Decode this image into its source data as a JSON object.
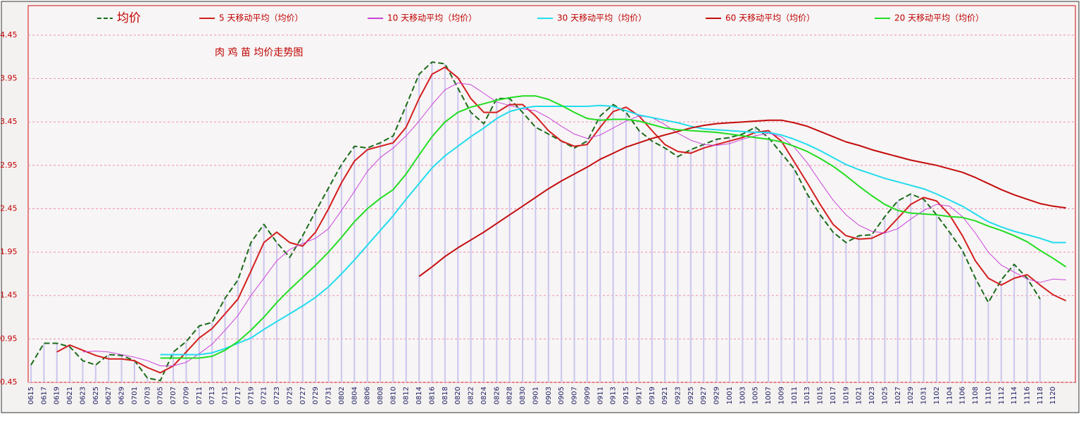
{
  "chart_data": {
    "type": "line",
    "subtitle": "肉 鸡 苗 均价走势图",
    "categories": [
      "0615",
      "0617",
      "0619",
      "0621",
      "0623",
      "0625",
      "0627",
      "0629",
      "0701",
      "0703",
      "0705",
      "0707",
      "0709",
      "0711",
      "0713",
      "0715",
      "0717",
      "0719",
      "0721",
      "0723",
      "0725",
      "0727",
      "0729",
      "0731",
      "0802",
      "0804",
      "0806",
      "0808",
      "0810",
      "0812",
      "0814",
      "0816",
      "0818",
      "0820",
      "0822",
      "0824",
      "0826",
      "0828",
      "0830",
      "0901",
      "0903",
      "0905",
      "0907",
      "0909",
      "0911",
      "0913",
      "0915",
      "0917",
      "0919",
      "0921",
      "0923",
      "0925",
      "0927",
      "0929",
      "1001",
      "1003",
      "1005",
      "1007",
      "1009",
      "1011",
      "1013",
      "1015",
      "1017",
      "1019",
      "1021",
      "1023",
      "1025",
      "1027",
      "1029",
      "1031",
      "1102",
      "1104",
      "1106",
      "1108",
      "1110",
      "1112",
      "1114",
      "1116",
      "1118",
      "1120",
      null
    ],
    "ylim": [
      0.45,
      4.79
    ],
    "yticks": [
      0.45,
      0.95,
      1.45,
      1.95,
      2.45,
      2.95,
      3.45,
      3.95,
      4.45
    ],
    "grid": true,
    "series": [
      {
        "name": "均价",
        "color": "#1b6b1b",
        "dashed": true,
        "bar_color": "#cbc6ef",
        "values": [
          0.65,
          0.9,
          0.9,
          0.86,
          0.7,
          0.65,
          0.77,
          0.76,
          0.7,
          0.5,
          0.47,
          0.8,
          0.92,
          1.1,
          1.14,
          1.42,
          1.63,
          2.06,
          2.27,
          2.06,
          1.89,
          2.14,
          2.42,
          2.69,
          2.96,
          3.17,
          3.15,
          3.21,
          3.29,
          3.64,
          4.0,
          4.14,
          4.12,
          3.84,
          3.56,
          3.43,
          3.72,
          3.72,
          3.56,
          3.39,
          3.31,
          3.23,
          3.15,
          3.23,
          3.52,
          3.65,
          3.56,
          3.35,
          3.23,
          3.15,
          3.05,
          3.13,
          3.19,
          3.25,
          3.27,
          3.31,
          3.39,
          3.27,
          3.09,
          2.91,
          2.62,
          2.38,
          2.18,
          2.06,
          2.14,
          2.15,
          2.36,
          2.54,
          2.62,
          2.56,
          2.38,
          2.18,
          1.97,
          1.65,
          1.37,
          1.63,
          1.81,
          1.65,
          1.41,
          null,
          null
        ]
      },
      {
        "name": "5 天移动平均（均价）",
        "color": "#d41e1e",
        "values": [
          null,
          null,
          0.8,
          0.88,
          0.82,
          0.76,
          0.72,
          0.72,
          0.7,
          0.62,
          0.56,
          0.64,
          0.8,
          0.96,
          1.07,
          1.24,
          1.41,
          1.73,
          2.06,
          2.18,
          2.06,
          2.02,
          2.18,
          2.45,
          2.75,
          3.0,
          3.13,
          3.17,
          3.21,
          3.39,
          3.72,
          4.0,
          4.08,
          3.96,
          3.72,
          3.56,
          3.56,
          3.65,
          3.65,
          3.52,
          3.35,
          3.23,
          3.17,
          3.19,
          3.39,
          3.57,
          3.62,
          3.52,
          3.35,
          3.19,
          3.11,
          3.09,
          3.15,
          3.19,
          3.23,
          3.27,
          3.33,
          3.35,
          3.23,
          2.99,
          2.75,
          2.5,
          2.27,
          2.14,
          2.1,
          2.11,
          2.18,
          2.34,
          2.5,
          2.58,
          2.54,
          2.38,
          2.14,
          1.85,
          1.65,
          1.57,
          1.65,
          1.69,
          1.57,
          1.46,
          1.39
        ]
      },
      {
        "name": "10 天移动平均（均价）",
        "color": "#cc44dd",
        "values": [
          null,
          null,
          null,
          null,
          0.8,
          0.81,
          0.8,
          0.77,
          0.74,
          0.7,
          0.64,
          0.64,
          0.68,
          0.78,
          0.89,
          1.05,
          1.22,
          1.45,
          1.65,
          1.85,
          1.98,
          2.05,
          2.11,
          2.22,
          2.43,
          2.65,
          2.88,
          3.04,
          3.15,
          3.29,
          3.46,
          3.65,
          3.82,
          3.9,
          3.88,
          3.78,
          3.68,
          3.64,
          3.6,
          3.58,
          3.5,
          3.4,
          3.31,
          3.26,
          3.3,
          3.38,
          3.46,
          3.52,
          3.5,
          3.42,
          3.32,
          3.24,
          3.19,
          3.18,
          3.2,
          3.25,
          3.29,
          3.32,
          3.28,
          3.16,
          2.98,
          2.76,
          2.55,
          2.38,
          2.26,
          2.19,
          2.17,
          2.22,
          2.33,
          2.43,
          2.5,
          2.48,
          2.36,
          2.17,
          1.95,
          1.8,
          1.72,
          1.64,
          1.6,
          1.64,
          1.63
        ]
      },
      {
        "name": "30 天移动平均（均价）",
        "color": "#22dcee",
        "values": [
          null,
          null,
          null,
          null,
          null,
          null,
          null,
          null,
          null,
          null,
          0.77,
          0.77,
          0.77,
          0.77,
          0.79,
          0.84,
          0.9,
          0.96,
          1.06,
          1.15,
          1.24,
          1.33,
          1.43,
          1.55,
          1.7,
          1.86,
          2.03,
          2.2,
          2.37,
          2.56,
          2.74,
          2.92,
          3.06,
          3.17,
          3.28,
          3.38,
          3.49,
          3.57,
          3.61,
          3.63,
          3.63,
          3.63,
          3.63,
          3.63,
          3.64,
          3.63,
          3.58,
          3.53,
          3.5,
          3.47,
          3.44,
          3.4,
          3.37,
          3.36,
          3.35,
          3.34,
          3.33,
          3.33,
          3.3,
          3.25,
          3.19,
          3.12,
          3.04,
          2.96,
          2.9,
          2.85,
          2.8,
          2.76,
          2.72,
          2.68,
          2.62,
          2.55,
          2.48,
          2.39,
          2.3,
          2.24,
          2.19,
          2.15,
          2.11,
          2.06,
          2.06
        ]
      },
      {
        "name": "60 天移动平均（均价）",
        "color": "#c40c0c",
        "values": [
          null,
          null,
          null,
          null,
          null,
          null,
          null,
          null,
          null,
          null,
          null,
          null,
          null,
          null,
          null,
          null,
          null,
          null,
          null,
          null,
          null,
          null,
          null,
          null,
          null,
          null,
          null,
          null,
          null,
          null,
          1.67,
          1.78,
          1.9,
          2.0,
          2.09,
          2.18,
          2.28,
          2.38,
          2.48,
          2.58,
          2.68,
          2.77,
          2.85,
          2.93,
          3.02,
          3.09,
          3.16,
          3.21,
          3.26,
          3.3,
          3.34,
          3.38,
          3.41,
          3.43,
          3.44,
          3.45,
          3.46,
          3.47,
          3.47,
          3.44,
          3.4,
          3.34,
          3.28,
          3.22,
          3.18,
          3.13,
          3.09,
          3.05,
          3.01,
          2.98,
          2.95,
          2.91,
          2.87,
          2.81,
          2.74,
          2.67,
          2.61,
          2.56,
          2.51,
          2.48,
          2.46
        ]
      },
      {
        "name": "20 天移动平均（均价）",
        "color": "#22dd22",
        "values": [
          null,
          null,
          null,
          null,
          null,
          null,
          null,
          null,
          null,
          null,
          0.73,
          0.73,
          0.73,
          0.73,
          0.75,
          0.82,
          0.92,
          1.05,
          1.2,
          1.37,
          1.52,
          1.66,
          1.8,
          1.95,
          2.12,
          2.3,
          2.45,
          2.57,
          2.67,
          2.85,
          3.07,
          3.28,
          3.45,
          3.56,
          3.62,
          3.66,
          3.7,
          3.73,
          3.75,
          3.75,
          3.71,
          3.64,
          3.56,
          3.49,
          3.47,
          3.48,
          3.48,
          3.46,
          3.42,
          3.38,
          3.36,
          3.35,
          3.34,
          3.33,
          3.31,
          3.29,
          3.27,
          3.25,
          3.22,
          3.17,
          3.11,
          3.03,
          2.94,
          2.83,
          2.71,
          2.6,
          2.5,
          2.43,
          2.4,
          2.39,
          2.38,
          2.36,
          2.35,
          2.31,
          2.25,
          2.2,
          2.14,
          2.07,
          1.97,
          1.88,
          1.78
        ]
      }
    ]
  }
}
